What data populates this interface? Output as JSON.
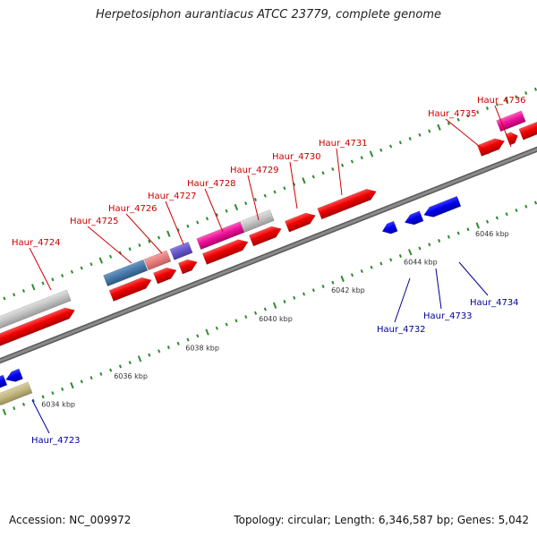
{
  "title": "Herpetosiphon aurantiacus ATCC 23779, complete genome",
  "footer": {
    "accession": "Accession: NC_009972",
    "summary": "Topology: circular; Length: 6,346,587 bp; Genes: 5,042"
  },
  "colors": {
    "forward_label": "#cc0000",
    "reverse_label": "#000099",
    "backbone": "#8a8a8a",
    "tick": "#2e8b2e"
  },
  "scale_labels": [
    "6034 kbp",
    "6036 kbp",
    "6038 kbp",
    "6040 kbp",
    "6042 kbp",
    "6044 kbp",
    "6046 kbp"
  ],
  "genes": [
    {
      "id": "Haur_4723",
      "strand": "reverse"
    },
    {
      "id": "Haur_4724",
      "strand": "forward"
    },
    {
      "id": "Haur_4725",
      "strand": "forward"
    },
    {
      "id": "Haur_4726",
      "strand": "forward"
    },
    {
      "id": "Haur_4727",
      "strand": "forward"
    },
    {
      "id": "Haur_4728",
      "strand": "forward"
    },
    {
      "id": "Haur_4729",
      "strand": "forward"
    },
    {
      "id": "Haur_4730",
      "strand": "forward"
    },
    {
      "id": "Haur_4731",
      "strand": "forward"
    },
    {
      "id": "Haur_4732",
      "strand": "reverse"
    },
    {
      "id": "Haur_4733",
      "strand": "reverse"
    },
    {
      "id": "Haur_4734",
      "strand": "reverse"
    },
    {
      "id": "Haur_4735",
      "strand": "forward"
    },
    {
      "id": "Haur_4736",
      "strand": "forward"
    }
  ]
}
